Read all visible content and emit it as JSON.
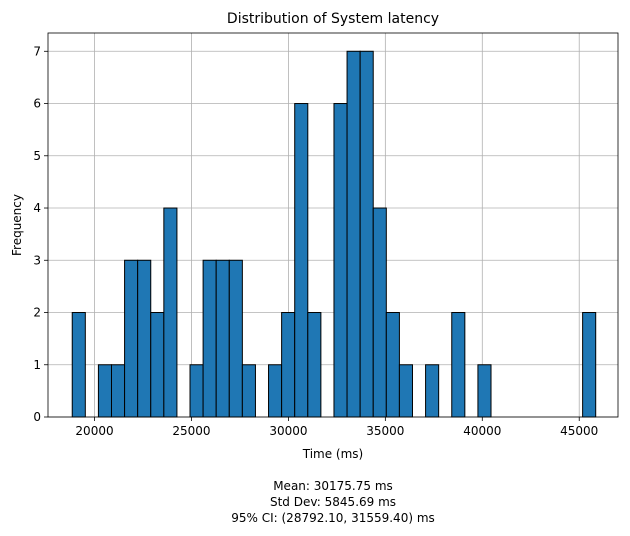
{
  "chart_data": {
    "type": "bar",
    "title": "Distribution of System latency",
    "xlabel": "Time (ms)",
    "ylabel": "Frequency",
    "xlim": [
      17600,
      47000
    ],
    "ylim": [
      0,
      7.35
    ],
    "xticks": [
      20000,
      25000,
      30000,
      35000,
      40000,
      45000
    ],
    "yticks": [
      0,
      1,
      2,
      3,
      4,
      5,
      6,
      7
    ],
    "grid": true,
    "bar_color": "#1f77b4",
    "edge_color": "#000000",
    "bin_start": 18850,
    "bin_width": 675,
    "bins": 40,
    "values": [
      2,
      0,
      1,
      1,
      3,
      3,
      2,
      4,
      0,
      1,
      3,
      3,
      3,
      1,
      0,
      1,
      2,
      6,
      2,
      0,
      6,
      7,
      7,
      4,
      2,
      1,
      0,
      1,
      0,
      2,
      0,
      1,
      0,
      0,
      0,
      0,
      0,
      0,
      0,
      2
    ],
    "annotations": [
      "Mean: 30175.75 ms",
      "Std Dev: 5845.69 ms",
      "95% CI: (28792.10, 31559.40) ms"
    ]
  }
}
